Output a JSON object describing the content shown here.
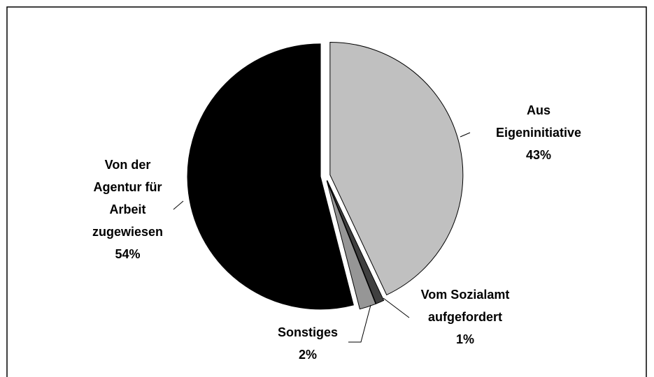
{
  "chart_data": {
    "type": "pie",
    "categories": [
      "Aus Eigeninitiative",
      "Vom Sozialamt aufgefordert",
      "Sonstiges",
      "Von der Agentur für Arbeit zugewiesen"
    ],
    "values": [
      43,
      1,
      2,
      54
    ],
    "value_labels": [
      "43%",
      "1%",
      "2%",
      "54%"
    ],
    "colors": [
      "#c0c0c0",
      "#404040",
      "#969696",
      "#000000"
    ]
  }
}
